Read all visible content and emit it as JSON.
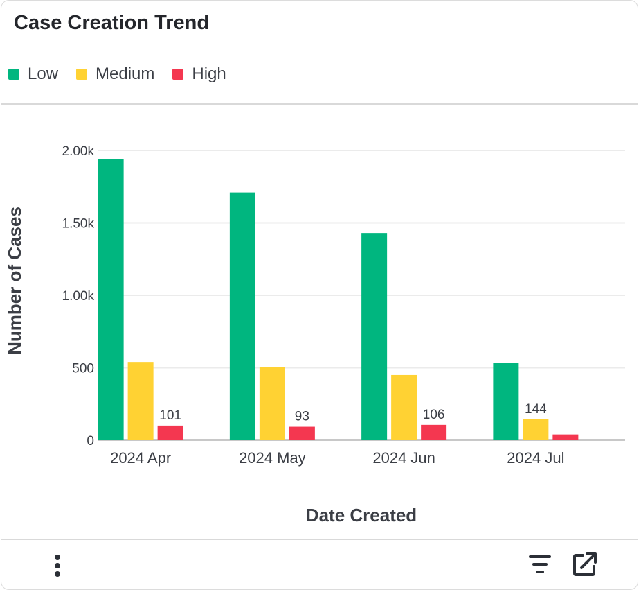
{
  "card": {
    "title": "Case Creation Trend"
  },
  "legend": [
    {
      "label": "Low",
      "color": "#00b67f"
    },
    {
      "label": "Medium",
      "color": "#ffd233"
    },
    {
      "label": "High",
      "color": "#f43750"
    }
  ],
  "footer": {
    "menu_icon": "kebab-menu-icon",
    "filter_icon": "filter-icon",
    "export_icon": "open-external-icon"
  },
  "chart_data": {
    "type": "bar",
    "categories": [
      "2024 Apr",
      "2024 May",
      "2024 Jun",
      "2024 Jul"
    ],
    "series": [
      {
        "name": "Low",
        "values": [
          1940,
          1710,
          1430,
          535
        ],
        "color": "#00b67f"
      },
      {
        "name": "Medium",
        "values": [
          540,
          505,
          450,
          144
        ],
        "color": "#ffd233"
      },
      {
        "name": "High",
        "values": [
          101,
          93,
          106,
          40
        ],
        "color": "#f43750"
      }
    ],
    "data_labels": [
      {
        "series": "High",
        "category": "2024 Apr",
        "text": "101"
      },
      {
        "series": "High",
        "category": "2024 May",
        "text": "93"
      },
      {
        "series": "High",
        "category": "2024 Jun",
        "text": "106"
      },
      {
        "series": "Medium",
        "category": "2024 Jul",
        "text": "144"
      }
    ],
    "xlabel": "Date Created",
    "ylabel": "Number of Cases",
    "ylim": [
      0,
      2000
    ],
    "yticks": [
      {
        "value": 0,
        "label": "0"
      },
      {
        "value": 500,
        "label": "500"
      },
      {
        "value": 1000,
        "label": "1.00k"
      },
      {
        "value": 1500,
        "label": "1.50k"
      },
      {
        "value": 2000,
        "label": "2.00k"
      }
    ],
    "grid": true,
    "legend_position": "top-left"
  }
}
